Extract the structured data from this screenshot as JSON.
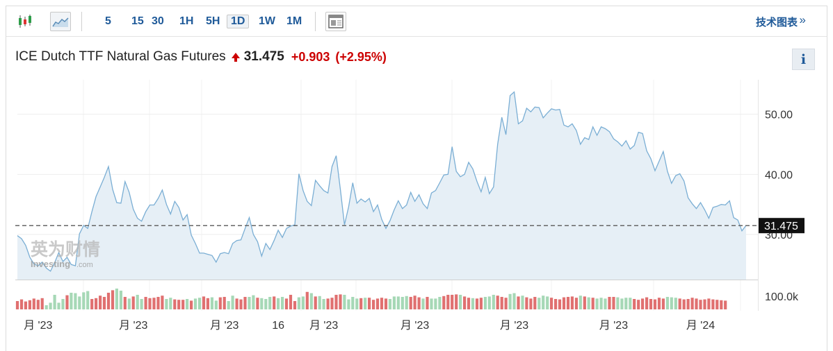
{
  "toolbar": {
    "timeframes": [
      "5",
      "15",
      "30",
      "1H",
      "5H",
      "1D",
      "1W",
      "1M"
    ],
    "active_timeframe": "1D",
    "chart_type_icons": [
      "candlestick-icon",
      "line-area-icon"
    ],
    "layout_icon": "layout-icon",
    "advanced_link": "技术图表",
    "advanced_arrow": "»"
  },
  "quote": {
    "name": "ICE Dutch TTF Natural Gas Futures",
    "price": "31.475",
    "change": "+0.903",
    "change_pct": "(+2.95%)",
    "direction": "up",
    "info_label": "i"
  },
  "watermark": {
    "cn": "英为财情",
    "en": "Investing",
    "suffix": ".com"
  },
  "colors": {
    "line": "#7aaed4",
    "area": "#e6eff6",
    "up_volume": "#a6d8b6",
    "down_volume": "#e07070",
    "down_text": "#cc0000",
    "link": "#1f5a99"
  },
  "chart_data": {
    "type": "area",
    "price_axis": {
      "ticks": [
        "50.00",
        "40.00",
        "30.00"
      ],
      "tick_values": [
        50,
        40,
        30
      ],
      "ylim": [
        22.5,
        55.5
      ]
    },
    "volume_axis": {
      "ticks": [
        "100.0k"
      ]
    },
    "x_ticks": [
      "月 '23",
      "月 '23",
      "月 '23",
      "16",
      "月 '23",
      "月 '23",
      "月 '23",
      "月 '23",
      "月 '24"
    ],
    "x_tick_index": [
      5,
      28,
      50,
      63,
      74,
      96,
      120,
      144,
      165
    ],
    "current_price": 31.475,
    "current_label": "31.475",
    "series": [
      {
        "values": [
          29.8,
          29.3,
          28.2,
          26.2,
          25.1,
          24.8,
          25.4,
          24.4,
          23.9,
          25.3,
          27.0,
          25.5,
          26.2,
          25.0,
          24.8,
          30.1,
          31.5,
          31.0,
          33.8,
          36.3,
          37.9,
          39.5,
          41.3,
          37.5,
          35.3,
          35.2,
          38.8,
          37.0,
          34.2,
          32.7,
          32.2,
          33.8,
          34.9,
          34.9,
          36.0,
          37.4,
          35.0,
          33.4,
          35.5,
          34.5,
          32.4,
          33.3,
          29.9,
          28.5,
          26.9,
          26.9,
          26.7,
          26.5,
          25.4,
          26.8,
          27.0,
          26.8,
          28.5,
          29.0,
          29.1,
          31.0,
          32.8,
          30.0,
          28.8,
          26.4,
          28.5,
          27.5,
          29.0,
          30.7,
          29.5,
          31.0,
          31.4,
          31.6,
          40.1,
          37.3,
          35.5,
          34.8,
          39.0,
          38.1,
          37.3,
          36.9,
          41.3,
          43.1,
          37.5,
          31.6,
          34.6,
          38.6,
          35.2,
          35.9,
          35.4,
          36.0,
          33.8,
          34.9,
          32.5,
          31.0,
          32.3,
          34.1,
          35.6,
          34.3,
          34.9,
          37.0,
          35.5,
          36.6,
          35.1,
          34.3,
          36.9,
          37.3,
          38.6,
          39.9,
          40.0,
          44.6,
          40.5,
          39.6,
          40.0,
          42.0,
          40.9,
          38.8,
          37.1,
          39.5,
          36.8,
          37.9,
          45.0,
          49.5,
          46.6,
          53.1,
          53.7,
          48.4,
          48.9,
          51.0,
          50.4,
          51.2,
          51.1,
          49.4,
          50.2,
          50.9,
          50.7,
          50.8,
          48.2,
          47.9,
          48.4,
          47.3,
          45.0,
          46.1,
          45.8,
          47.9,
          46.5,
          47.9,
          47.6,
          47.1,
          45.9,
          45.4,
          44.7,
          45.6,
          44.2,
          44.8,
          47.0,
          46.8,
          43.9,
          42.6,
          40.6,
          42.2,
          43.8,
          40.5,
          38.5,
          39.8,
          40.1,
          38.9,
          36.1,
          35.1,
          34.3,
          35.3,
          34.1,
          32.7,
          34.5,
          34.7,
          35.0,
          34.9,
          35.6,
          32.8,
          32.4,
          30.6,
          31.5
        ]
      },
      {
        "name": "volume",
        "up": [
          false,
          false,
          false,
          false,
          false,
          false,
          false,
          true,
          true,
          true,
          true,
          true,
          false,
          true,
          true,
          true,
          true,
          true,
          false,
          false,
          false,
          false,
          false,
          false,
          true,
          true,
          false,
          true,
          false,
          true,
          true,
          false,
          false,
          false,
          false,
          false,
          true,
          true,
          false,
          false,
          false,
          true,
          false,
          true,
          true,
          false,
          false,
          true,
          true,
          false,
          false,
          true,
          true,
          false,
          false,
          false,
          true,
          true,
          false,
          true,
          true,
          true,
          false,
          true,
          true,
          false,
          false,
          false,
          true,
          true,
          false,
          true,
          false,
          true,
          true,
          false,
          false,
          false,
          false,
          true,
          true,
          true,
          true,
          false,
          true,
          false,
          false,
          false,
          false,
          false,
          true,
          true,
          true,
          true,
          true,
          false,
          false,
          false,
          true,
          false,
          true,
          true,
          true,
          false,
          false,
          false,
          false,
          true,
          false,
          false,
          true,
          false,
          false,
          true,
          true,
          true,
          false,
          false,
          false,
          true,
          true,
          false,
          true,
          false,
          false,
          false,
          true,
          true,
          true,
          false,
          false,
          false,
          false,
          false,
          false,
          false,
          true,
          false,
          true,
          false,
          true,
          true,
          true,
          false,
          false,
          true,
          true,
          true,
          true,
          false,
          false,
          false,
          false,
          false,
          false,
          false,
          false,
          true,
          true,
          true,
          false,
          false,
          false,
          false,
          false,
          false,
          false
        ],
        "values": [
          0.4,
          0.48,
          0.38,
          0.44,
          0.52,
          0.46,
          0.54,
          0.2,
          0.32,
          0.7,
          0.32,
          0.5,
          0.68,
          0.8,
          0.78,
          0.62,
          0.82,
          0.88,
          0.5,
          0.54,
          0.66,
          0.6,
          0.8,
          0.92,
          1.0,
          0.9,
          0.6,
          0.52,
          0.62,
          0.7,
          0.5,
          0.6,
          0.54,
          0.56,
          0.6,
          0.66,
          0.5,
          0.56,
          0.48,
          0.46,
          0.46,
          0.5,
          0.42,
          0.52,
          0.56,
          0.62,
          0.54,
          0.58,
          0.42,
          0.58,
          0.6,
          0.4,
          0.66,
          0.52,
          0.48,
          0.6,
          0.6,
          0.68,
          0.56,
          0.54,
          0.5,
          0.6,
          0.62,
          0.54,
          0.6,
          0.52,
          0.7,
          0.4,
          0.58,
          0.62,
          0.84,
          0.78,
          0.62,
          0.64,
          0.5,
          0.52,
          0.56,
          0.7,
          0.72,
          0.7,
          0.48,
          0.6,
          0.52,
          0.54,
          0.56,
          0.56,
          0.46,
          0.52,
          0.56,
          0.52,
          0.5,
          0.62,
          0.62,
          0.6,
          0.64,
          0.6,
          0.66,
          0.58,
          0.52,
          0.6,
          0.52,
          0.52,
          0.6,
          0.64,
          0.7,
          0.7,
          0.72,
          0.7,
          0.62,
          0.56,
          0.54,
          0.52,
          0.56,
          0.6,
          0.62,
          0.7,
          0.66,
          0.6,
          0.56,
          0.74,
          0.78,
          0.62,
          0.66,
          0.58,
          0.52,
          0.6,
          0.56,
          0.66,
          0.62,
          0.56,
          0.5,
          0.48,
          0.58,
          0.6,
          0.62,
          0.56,
          0.66,
          0.62,
          0.58,
          0.56,
          0.52,
          0.56,
          0.52,
          0.6,
          0.6,
          0.58,
          0.52,
          0.56,
          0.56,
          0.5,
          0.46,
          0.52,
          0.58,
          0.5,
          0.48,
          0.56,
          0.52,
          0.6,
          0.58,
          0.56,
          0.52,
          0.48,
          0.5,
          0.56,
          0.52,
          0.46,
          0.48,
          0.52,
          0.48,
          0.46,
          0.44,
          0.42
        ]
      }
    ]
  }
}
